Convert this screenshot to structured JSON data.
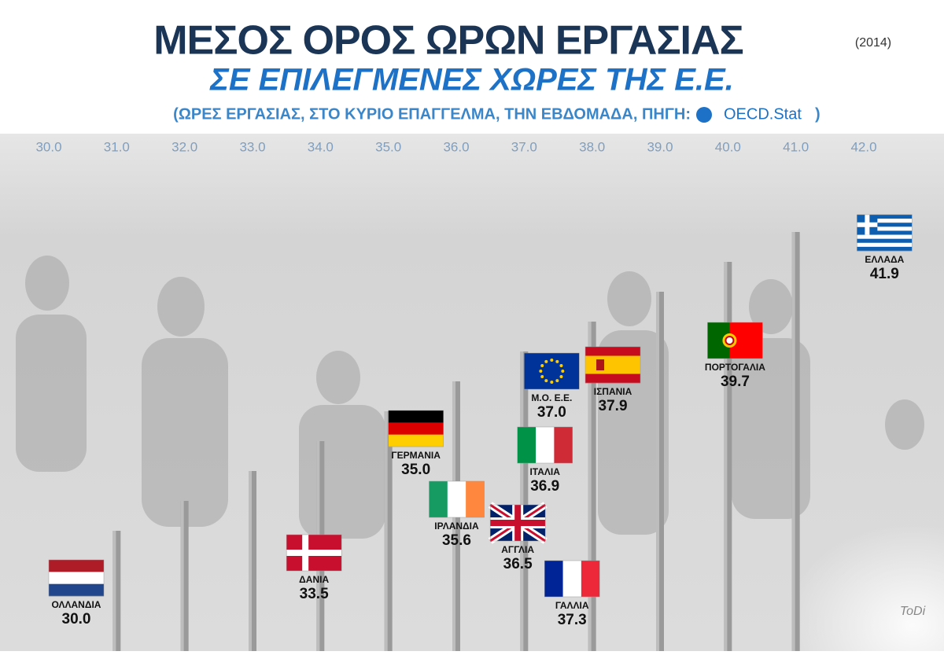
{
  "chart_data": {
    "type": "flag-dot",
    "title": "ΜΕΣΟΣ ΟΡΟΣ ΩΡΩΝ ΕΡΓΑΣΙΑΣ",
    "year": "(2014)",
    "title_line2": "ΣΕ ΕΠΙΛΕΓΜΕΝΕΣ ΧΩΡΕΣ ΤΗΣ Ε.Ε.",
    "subtitle": "(ΩΡΕΣ ΕΡΓΑΣΙΑΣ, ΣΤΟ ΚΥΡΙΟ ΕΠΑΓΓΕΛΜΑ, ΤΗΝ ΕΒΔΟΜΑΔΑ, ΠΗΓΗ:",
    "source": "OECD.Stat",
    "subtitle_end": ")",
    "signature": "ToDi",
    "categories": [
      "ΟΛΛΑΝΔΙΑ",
      "ΔΑΝΙΑ",
      "ΓΕΡΜΑΝΙΑ",
      "ΙΡΛΑΝΔΙΑ",
      "ΑΓΓΛΙΑ",
      "ΙΤΑΛΙΑ",
      "Μ.Ο. Ε.Ε.",
      "ΓΑΛΛΙΑ",
      "ΙΣΠΑΝΙΑ",
      "ΠΟΡΤΟΓΑΛΙΑ",
      "ΕΛΛΑΔΑ"
    ],
    "values": [
      30,
      33.5,
      35,
      35.6,
      36.5,
      36.9,
      37,
      37.3,
      37.9,
      39.7,
      41.9
    ],
    "value_labels": [
      "30.0",
      "33.5",
      "35.0",
      "35.6",
      "36.5",
      "36.9",
      "37.0",
      "37.3",
      "37.9",
      "39.7",
      "41.9"
    ],
    "xlim": [
      30,
      42
    ],
    "xticks": [
      {
        "value": 30,
        "label": "30.0"
      },
      {
        "value": 31,
        "label": "31.0"
      },
      {
        "value": 32,
        "label": "32.0"
      },
      {
        "value": 33,
        "label": "33.0"
      },
      {
        "value": 34,
        "label": "34.0"
      },
      {
        "value": 35,
        "label": "35.0"
      },
      {
        "value": 36,
        "label": "36.0"
      },
      {
        "value": 37,
        "label": "37.0"
      },
      {
        "value": 38,
        "label": "38.0"
      },
      {
        "value": 39,
        "label": "39.0"
      },
      {
        "value": 40,
        "label": "40.0"
      },
      {
        "value": 41,
        "label": "41.0"
      },
      {
        "value": 42,
        "label": "42.0"
      }
    ]
  }
}
